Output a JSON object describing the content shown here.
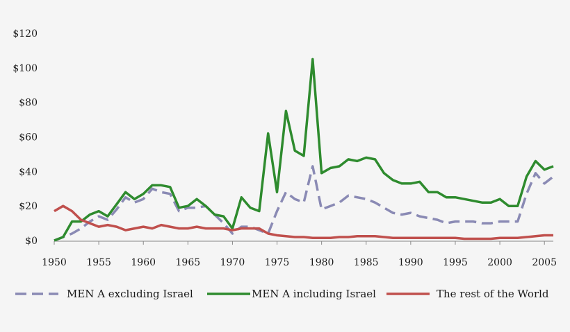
{
  "chart_data": {
    "type": "line",
    "title": "",
    "xlabel": "",
    "ylabel": "",
    "xlim": [
      1950,
      2006
    ],
    "ylim": [
      0,
      120
    ],
    "x_ticks": [
      1950,
      1955,
      1960,
      1965,
      1970,
      1975,
      1980,
      1985,
      1990,
      1995,
      2000,
      2005
    ],
    "y_ticks": [
      0,
      20,
      40,
      60,
      80,
      100,
      120
    ],
    "y_tick_labels": [
      "$0",
      "$20",
      "$40",
      "$60",
      "$80",
      "$100",
      "$120"
    ],
    "grid": false,
    "legend_position": "bottom",
    "x": [
      1950,
      1951,
      1952,
      1953,
      1954,
      1955,
      1956,
      1957,
      1958,
      1959,
      1960,
      1961,
      1962,
      1963,
      1964,
      1965,
      1966,
      1967,
      1968,
      1969,
      1970,
      1971,
      1972,
      1973,
      1974,
      1975,
      1976,
      1977,
      1978,
      1979,
      1980,
      1981,
      1982,
      1983,
      1984,
      1985,
      1986,
      1987,
      1988,
      1989,
      1990,
      1991,
      1992,
      1993,
      1994,
      1995,
      1996,
      1997,
      1998,
      1999,
      2000,
      2001,
      2002,
      2003,
      2004,
      2005,
      2006
    ],
    "series": [
      {
        "name": "MEN A excluding Israel",
        "color": "#8a8ab4",
        "dash": "dashed",
        "values": [
          0,
          2,
          4,
          7,
          11,
          14,
          12,
          18,
          25,
          22,
          24,
          30,
          28,
          27,
          17,
          19,
          19,
          20,
          15,
          10,
          4,
          8,
          8,
          6,
          4,
          17,
          28,
          24,
          22,
          43,
          18,
          20,
          22,
          26,
          25,
          24,
          22,
          19,
          16,
          15,
          16,
          14,
          13,
          12,
          10,
          11,
          11,
          11,
          10,
          10,
          11,
          11,
          11,
          27,
          39,
          33,
          37
        ]
      },
      {
        "name": "MEN A including Israel",
        "color": "#2e8b2e",
        "dash": "solid",
        "values": [
          0,
          2,
          11,
          11,
          15,
          17,
          14,
          21,
          28,
          24,
          27,
          32,
          32,
          31,
          19,
          20,
          24,
          20,
          15,
          14,
          7,
          25,
          19,
          17,
          62,
          28,
          75,
          52,
          49,
          105,
          39,
          42,
          43,
          47,
          46,
          48,
          47,
          39,
          35,
          33,
          33,
          34,
          28,
          28,
          25,
          25,
          24,
          23,
          22,
          22,
          24,
          20,
          20,
          37,
          46,
          41,
          43
        ]
      },
      {
        "name": "The rest of the World",
        "color": "#c0504d",
        "dash": "solid",
        "values": [
          17,
          20,
          17,
          12,
          10,
          8,
          9,
          8,
          6,
          7,
          8,
          7,
          9,
          8,
          7,
          7,
          8,
          7,
          7,
          7,
          6,
          7,
          7,
          7,
          4,
          3,
          2.5,
          2,
          2,
          1.5,
          1.5,
          1.5,
          2,
          2,
          2.5,
          2.5,
          2.5,
          2,
          1.5,
          1.5,
          1.5,
          1.5,
          1.5,
          1.5,
          1.5,
          1.5,
          1,
          1,
          1,
          1,
          1.5,
          1.5,
          1.5,
          2,
          2.5,
          3,
          3
        ]
      }
    ]
  }
}
